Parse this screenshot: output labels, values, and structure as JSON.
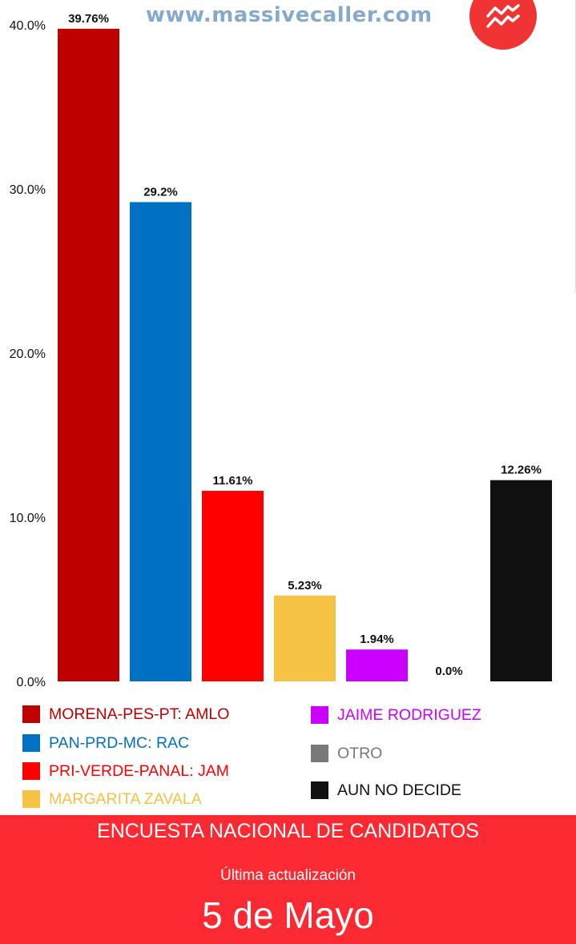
{
  "header": {
    "website": "www.massivecaller.com",
    "logo_icon": "trend-lines-icon"
  },
  "colors": {
    "footer_bg": "#fb2a32",
    "logo_bg": "#f03333"
  },
  "chart_data": {
    "type": "bar",
    "title": "",
    "xlabel": "",
    "ylabel": "",
    "ylim": [
      0,
      40
    ],
    "yticks": [
      0,
      10,
      20,
      30,
      40
    ],
    "ytick_labels": [
      "0.0%",
      "10.0%",
      "20.0%",
      "30.0%",
      "40.0%"
    ],
    "grid": false,
    "legend_position": "bottom",
    "categories": [
      "MORENA-PES-PT: AMLO",
      "PAN-PRD-MC: RAC",
      "PRI-VERDE-PANAL: JAM",
      "MARGARITA ZAVALA",
      "JAIME RODRIGUEZ",
      "OTRO",
      "AUN NO DECIDE"
    ],
    "values": [
      39.76,
      29.2,
      11.61,
      5.23,
      1.94,
      0.0,
      12.26
    ],
    "value_labels": [
      "39.76%",
      "29.2%",
      "11.61%",
      "5.23%",
      "1.94%",
      "0.0%",
      "12.26%"
    ],
    "colors": [
      "#bf0000",
      "#0071c2",
      "#ff0000",
      "#f6c244",
      "#cc00ff",
      "#7b7877",
      "#101010"
    ],
    "legend_text_colors": [
      "#bf0000",
      "#0071c2",
      "#ff0000",
      "#f6c244",
      "#cc00ff",
      "#7b7877",
      "#101010"
    ]
  },
  "footer": {
    "title": "ENCUESTA NACIONAL DE CANDIDATOS",
    "subtitle": "Última actualización",
    "date": "5 de Mayo"
  }
}
